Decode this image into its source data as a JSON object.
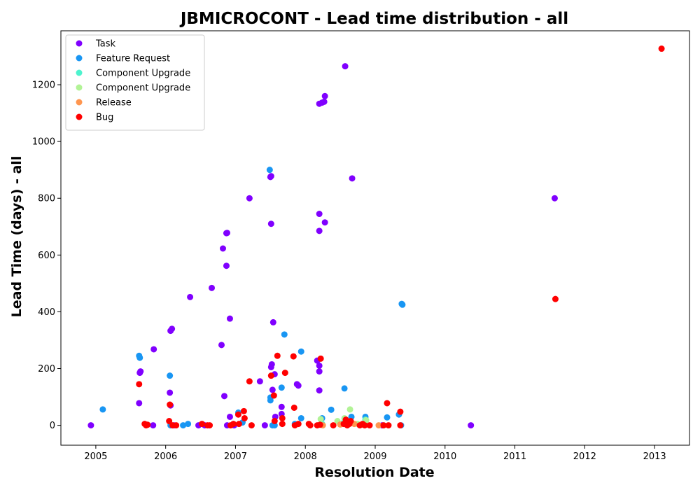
{
  "chart_data": {
    "type": "scatter",
    "title": "JBMICROCONT - Lead time distribution - all",
    "xlabel": "Resolution Date",
    "ylabel": "Lead Time (days) - all",
    "xlim": [
      2004.5,
      2013.5
    ],
    "ylim": [
      -70,
      1390
    ],
    "x_ticks": [
      2005,
      2006,
      2007,
      2008,
      2009,
      2010,
      2011,
      2012,
      2013
    ],
    "x_tick_labels": [
      "2005",
      "2006",
      "2007",
      "2008",
      "2009",
      "2010",
      "2011",
      "2012",
      "2013"
    ],
    "y_ticks": [
      0,
      200,
      400,
      600,
      800,
      1000,
      1200
    ],
    "y_tick_labels": [
      "0",
      "200",
      "400",
      "600",
      "800",
      "1000",
      "1200"
    ],
    "grid": false,
    "legend_position": "top-left",
    "series": [
      {
        "name": "Task",
        "color": "#8000ff",
        "points": [
          [
            2004.93,
            0
          ],
          [
            2005.62,
            78
          ],
          [
            2005.63,
            185
          ],
          [
            2005.64,
            190
          ],
          [
            2005.83,
            268
          ],
          [
            2005.82,
            0
          ],
          [
            2006.06,
            115
          ],
          [
            2006.07,
            70
          ],
          [
            2006.07,
            333
          ],
          [
            2006.09,
            340
          ],
          [
            2006.12,
            0
          ],
          [
            2006.35,
            452
          ],
          [
            2006.47,
            0
          ],
          [
            2006.56,
            0
          ],
          [
            2006.66,
            484
          ],
          [
            2006.8,
            283
          ],
          [
            2006.82,
            623
          ],
          [
            2006.84,
            103
          ],
          [
            2006.87,
            562
          ],
          [
            2006.87,
            677
          ],
          [
            2006.88,
            678
          ],
          [
            2006.88,
            0
          ],
          [
            2006.92,
            376
          ],
          [
            2006.92,
            30
          ],
          [
            2006.98,
            0
          ],
          [
            2007.2,
            800
          ],
          [
            2007.35,
            155
          ],
          [
            2007.42,
            0
          ],
          [
            2007.5,
            875
          ],
          [
            2007.51,
            878
          ],
          [
            2007.51,
            710
          ],
          [
            2007.51,
            205
          ],
          [
            2007.52,
            215
          ],
          [
            2007.53,
            125
          ],
          [
            2007.54,
            363
          ],
          [
            2007.56,
            180
          ],
          [
            2007.57,
            30
          ],
          [
            2007.66,
            65
          ],
          [
            2007.66,
            40
          ],
          [
            2007.88,
            145
          ],
          [
            2007.9,
            140
          ],
          [
            2008.17,
            228
          ],
          [
            2008.2,
            1133
          ],
          [
            2008.2,
            745
          ],
          [
            2008.2,
            685
          ],
          [
            2008.2,
            210
          ],
          [
            2008.2,
            190
          ],
          [
            2008.2,
            123
          ],
          [
            2008.24,
            1137
          ],
          [
            2008.27,
            1140
          ],
          [
            2008.28,
            1160
          ],
          [
            2008.28,
            715
          ],
          [
            2008.57,
            1265
          ],
          [
            2008.67,
            870
          ],
          [
            2009.1,
            0
          ],
          [
            2010.37,
            0
          ],
          [
            2011.57,
            800
          ]
        ]
      },
      {
        "name": "Feature Request",
        "color": "#1996f3",
        "points": [
          [
            2005.1,
            56
          ],
          [
            2005.62,
            245
          ],
          [
            2005.63,
            238
          ],
          [
            2006.06,
            175
          ],
          [
            2006.07,
            0
          ],
          [
            2006.25,
            0
          ],
          [
            2006.32,
            5
          ],
          [
            2007.04,
            45
          ],
          [
            2007.1,
            10
          ],
          [
            2007.49,
            900
          ],
          [
            2007.5,
            98
          ],
          [
            2007.5,
            88
          ],
          [
            2007.53,
            0
          ],
          [
            2007.56,
            0
          ],
          [
            2007.7,
            320
          ],
          [
            2007.66,
            133
          ],
          [
            2007.85,
            5
          ],
          [
            2007.94,
            260
          ],
          [
            2007.94,
            25
          ],
          [
            2008.24,
            25
          ],
          [
            2008.37,
            55
          ],
          [
            2008.56,
            130
          ],
          [
            2008.66,
            30
          ],
          [
            2008.86,
            30
          ],
          [
            2009.17,
            28
          ],
          [
            2009.34,
            38
          ],
          [
            2009.38,
            428
          ],
          [
            2009.39,
            425
          ],
          [
            2009.37,
            0
          ]
        ]
      },
      {
        "name": "Component Upgrade",
        "color": "#4df3ce",
        "points": [
          [
            2008.24,
            5
          ],
          [
            2008.55,
            10
          ],
          [
            2008.86,
            20
          ]
        ]
      },
      {
        "name": "Component  Upgrade",
        "color": "#b2f396",
        "points": [
          [
            2008.22,
            22
          ],
          [
            2008.46,
            15
          ],
          [
            2008.56,
            25
          ],
          [
            2008.64,
            56
          ],
          [
            2008.75,
            5
          ],
          [
            2008.87,
            18
          ]
        ]
      },
      {
        "name": "Release",
        "color": "#ff964f",
        "points": [
          [
            2008.25,
            0
          ],
          [
            2008.5,
            3
          ],
          [
            2008.7,
            5
          ],
          [
            2008.8,
            2
          ],
          [
            2009.05,
            0
          ]
        ]
      },
      {
        "name": "Bug",
        "color": "#ff0000",
        "points": [
          [
            2005.62,
            145
          ],
          [
            2005.7,
            5
          ],
          [
            2005.72,
            0
          ],
          [
            2005.74,
            2
          ],
          [
            2006.05,
            15
          ],
          [
            2006.06,
            73
          ],
          [
            2006.1,
            0
          ],
          [
            2006.15,
            0
          ],
          [
            2006.52,
            5
          ],
          [
            2006.6,
            0
          ],
          [
            2006.63,
            0
          ],
          [
            2006.93,
            0
          ],
          [
            2006.97,
            5
          ],
          [
            2007.04,
            38
          ],
          [
            2007.05,
            5
          ],
          [
            2007.12,
            50
          ],
          [
            2007.13,
            25
          ],
          [
            2007.2,
            155
          ],
          [
            2007.23,
            0
          ],
          [
            2007.51,
            175
          ],
          [
            2007.55,
            105
          ],
          [
            2007.56,
            15
          ],
          [
            2007.6,
            245
          ],
          [
            2007.67,
            25
          ],
          [
            2007.67,
            5
          ],
          [
            2007.71,
            185
          ],
          [
            2007.83,
            243
          ],
          [
            2007.84,
            62
          ],
          [
            2007.85,
            0
          ],
          [
            2007.9,
            5
          ],
          [
            2008.05,
            5
          ],
          [
            2008.07,
            0
          ],
          [
            2008.17,
            0
          ],
          [
            2008.22,
            235
          ],
          [
            2008.21,
            2
          ],
          [
            2008.4,
            0
          ],
          [
            2008.55,
            5
          ],
          [
            2008.58,
            20
          ],
          [
            2008.6,
            0
          ],
          [
            2008.63,
            5
          ],
          [
            2008.65,
            15
          ],
          [
            2008.78,
            0
          ],
          [
            2008.82,
            5
          ],
          [
            2008.85,
            0
          ],
          [
            2008.92,
            0
          ],
          [
            2009.12,
            0
          ],
          [
            2009.17,
            78
          ],
          [
            2009.19,
            0
          ],
          [
            2009.36,
            48
          ],
          [
            2009.36,
            0
          ],
          [
            2011.58,
            445
          ],
          [
            2013.1,
            1327
          ]
        ]
      }
    ]
  }
}
